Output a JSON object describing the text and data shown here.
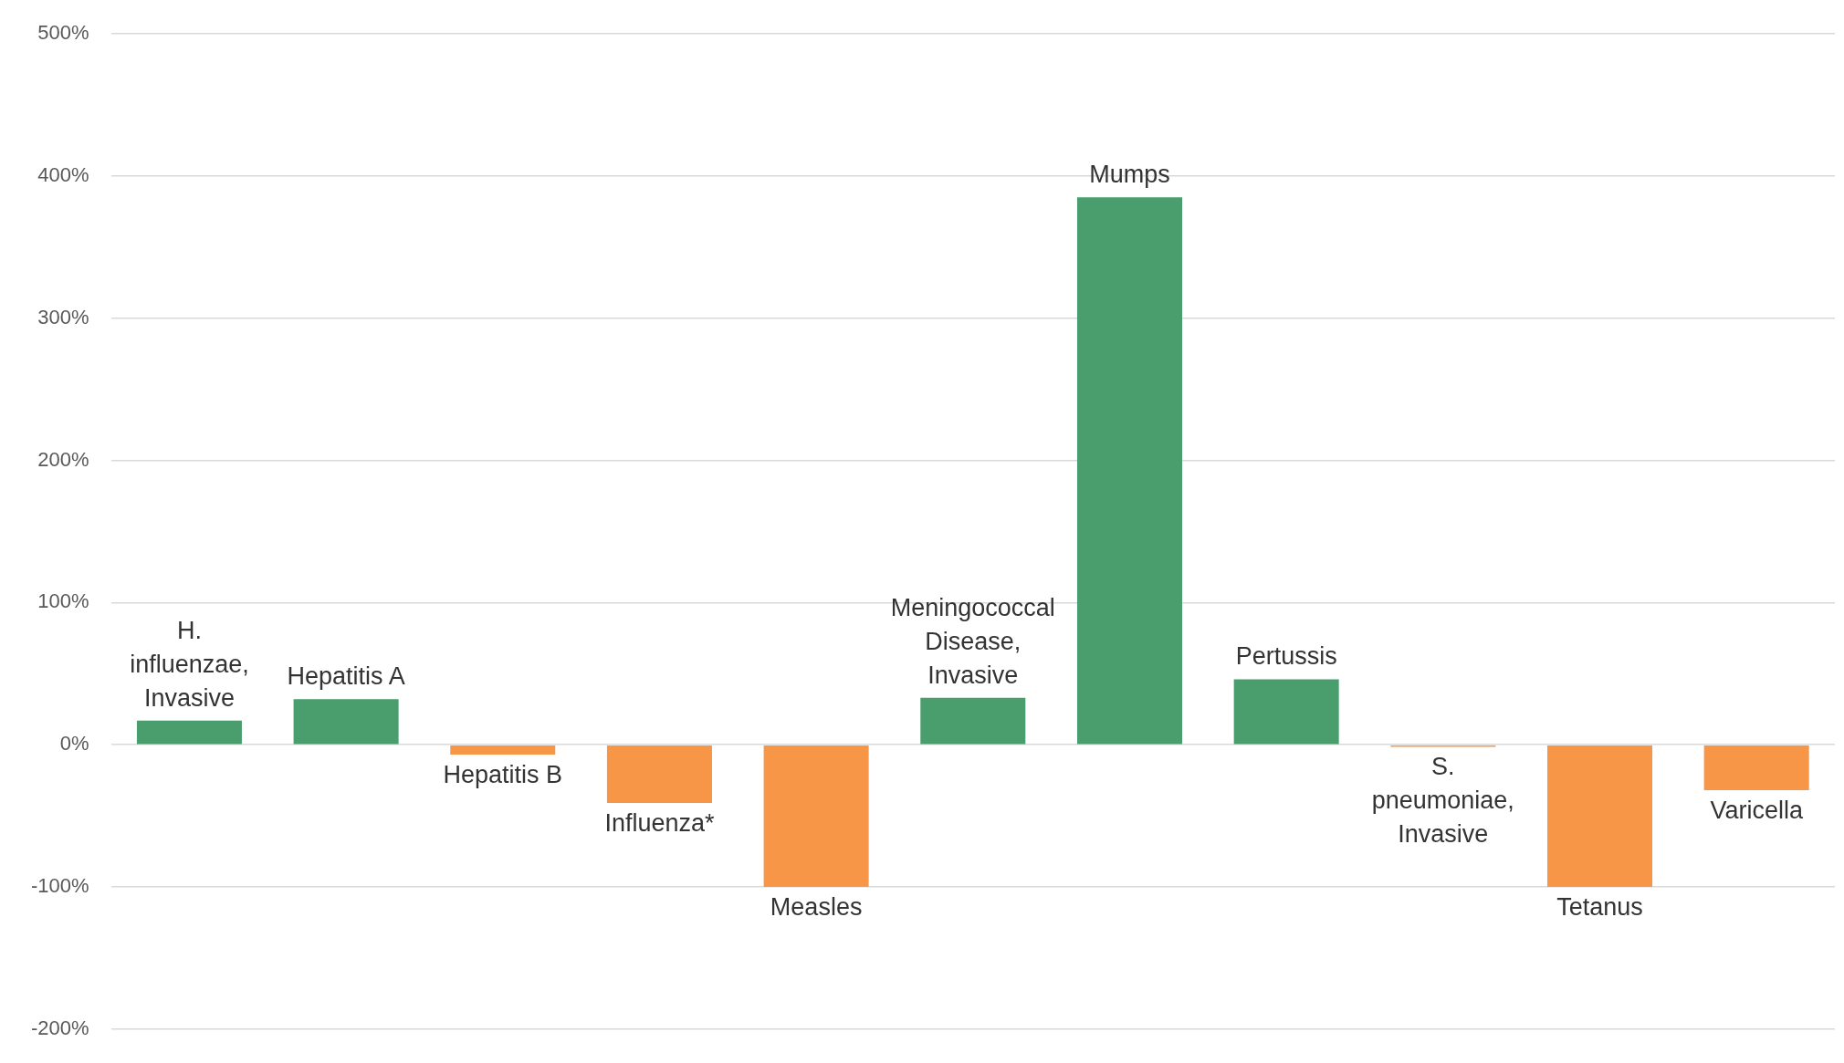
{
  "chart_data": {
    "type": "bar",
    "categories": [
      "H. influenzae, Invasive",
      "Hepatitis A",
      "Hepatitis B",
      "Influenza*",
      "Measles",
      "Meningococcal Disease, Invasive",
      "Mumps",
      "Pertussis",
      "S. pneumoniae, Invasive",
      "Tetanus",
      "Varicella"
    ],
    "values": [
      17,
      32,
      -7,
      -41,
      -100,
      33,
      385,
      46,
      -1.5,
      -100,
      -32
    ],
    "colors": [
      "#4a9d6c",
      "#4a9d6c",
      "#f79646",
      "#f79646",
      "#f79646",
      "#4a9d6c",
      "#4a9d6c",
      "#4a9d6c",
      "#f79646",
      "#f79646",
      "#f79646"
    ],
    "ylim": [
      -200,
      500
    ],
    "yticks": [
      {
        "value": -200,
        "label": "-200%"
      },
      {
        "value": -100,
        "label": "-100%"
      },
      {
        "value": 0,
        "label": "0%"
      },
      {
        "value": 100,
        "label": "100%"
      },
      {
        "value": 200,
        "label": "200%"
      },
      {
        "value": 300,
        "label": "300%"
      },
      {
        "value": 400,
        "label": "400%"
      },
      {
        "value": 500,
        "label": "500%"
      }
    ],
    "grid": "y",
    "legend": false,
    "tick_labels": "y"
  }
}
